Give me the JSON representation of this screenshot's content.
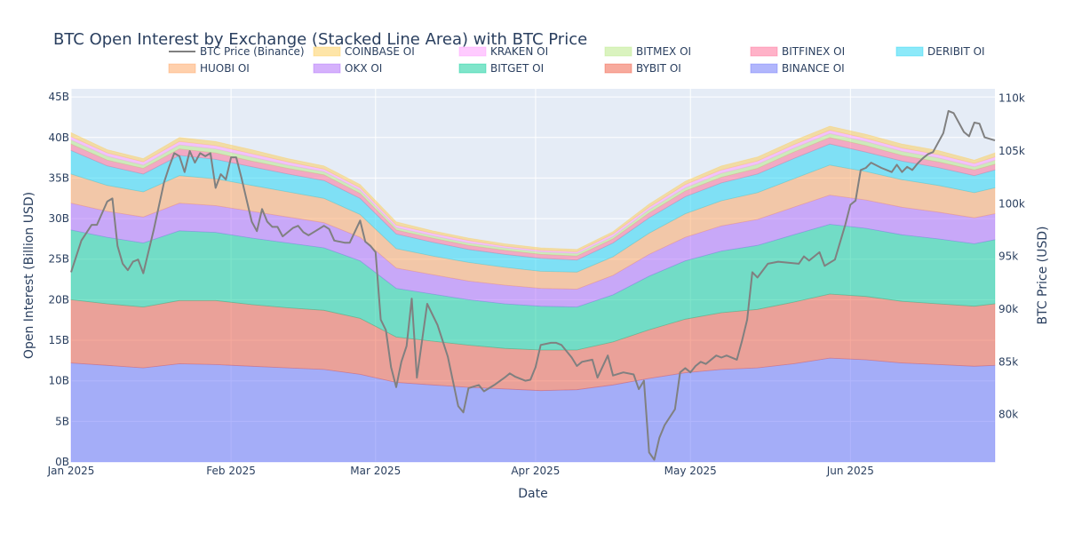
{
  "chart_data": {
    "type": "area",
    "title": "BTC Open Interest by Exchange (Stacked Line Area) with BTC Price",
    "xlabel": "Date",
    "ylabel": "Open Interest (Billion USD)",
    "y2label": "BTC Price (USD)",
    "x_range": [
      "2025-01-01",
      "2025-06-29"
    ],
    "ylim": [
      0,
      46
    ],
    "y2lim": [
      75500,
      110900
    ],
    "grid": true,
    "plot_background": "#e5ecf6",
    "legend_position": "top",
    "x_ticks": [
      {
        "date": "2025-01-01",
        "label": "Jan 2025"
      },
      {
        "date": "2025-02-01",
        "label": "Feb 2025"
      },
      {
        "date": "2025-03-01",
        "label": "Mar 2025"
      },
      {
        "date": "2025-04-01",
        "label": "Apr 2025"
      },
      {
        "date": "2025-05-01",
        "label": "May 2025"
      },
      {
        "date": "2025-06-01",
        "label": "Jun 2025"
      }
    ],
    "y_ticks": [
      {
        "value": 0,
        "label": "0B"
      },
      {
        "value": 5,
        "label": "5B"
      },
      {
        "value": 10,
        "label": "10B"
      },
      {
        "value": 15,
        "label": "15B"
      },
      {
        "value": 20,
        "label": "20B"
      },
      {
        "value": 25,
        "label": "25B"
      },
      {
        "value": 30,
        "label": "30B"
      },
      {
        "value": 35,
        "label": "35B"
      },
      {
        "value": 40,
        "label": "40B"
      },
      {
        "value": 45,
        "label": "45B"
      }
    ],
    "y2_ticks": [
      {
        "value": 80000,
        "label": "80k"
      },
      {
        "value": 85000,
        "label": "85k"
      },
      {
        "value": 90000,
        "label": "90k"
      },
      {
        "value": 95000,
        "label": "95k"
      },
      {
        "value": 100000,
        "label": "100k"
      },
      {
        "value": 105000,
        "label": "105k"
      },
      {
        "value": 110000,
        "label": "110k"
      }
    ],
    "legend": [
      {
        "name": "BTC Price (Binance)",
        "kind": "line",
        "color": "#808080"
      },
      {
        "name": "COINBASE OI",
        "kind": "area",
        "color": "#FECB52"
      },
      {
        "name": "KRAKEN OI",
        "kind": "area",
        "color": "#FF97FF"
      },
      {
        "name": "BITMEX OI",
        "kind": "area",
        "color": "#B6E880"
      },
      {
        "name": "BITFINEX OI",
        "kind": "area",
        "color": "#FF6692"
      },
      {
        "name": "DERIBIT OI",
        "kind": "area",
        "color": "#19D3F3"
      },
      {
        "name": "HUOBI OI",
        "kind": "area",
        "color": "#FFA15A"
      },
      {
        "name": "OKX OI",
        "kind": "area",
        "color": "#AB63FA"
      },
      {
        "name": "BITGET OI",
        "kind": "area",
        "color": "#00CC96"
      },
      {
        "name": "BYBIT OI",
        "kind": "area",
        "color": "#EF553B"
      },
      {
        "name": "BINANCE OI",
        "kind": "area",
        "color": "#636EFA"
      }
    ],
    "stack_order_bottom_to_top": [
      "BINANCE OI",
      "BYBIT OI",
      "BITGET OI",
      "OKX OI",
      "HUOBI OI",
      "DERIBIT OI",
      "BITFINEX OI",
      "BITMEX OI",
      "KRAKEN OI",
      "COINBASE OI"
    ],
    "oi_dates": [
      "2025-01-01",
      "2025-01-08",
      "2025-01-15",
      "2025-01-22",
      "2025-01-29",
      "2025-02-05",
      "2025-02-12",
      "2025-02-19",
      "2025-02-26",
      "2025-03-05",
      "2025-03-12",
      "2025-03-19",
      "2025-03-26",
      "2025-04-02",
      "2025-04-09",
      "2025-04-16",
      "2025-04-23",
      "2025-04-30",
      "2025-05-07",
      "2025-05-14",
      "2025-05-21",
      "2025-05-28",
      "2025-06-04",
      "2025-06-11",
      "2025-06-18",
      "2025-06-25",
      "2025-06-29"
    ],
    "oi_series": [
      {
        "name": "BINANCE OI",
        "values": [
          12.2,
          11.9,
          11.6,
          12.1,
          12.0,
          11.8,
          11.6,
          11.4,
          10.8,
          9.8,
          9.5,
          9.2,
          9.0,
          8.8,
          8.9,
          9.5,
          10.3,
          11.0,
          11.4,
          11.6,
          12.1,
          12.8,
          12.6,
          12.2,
          12.0,
          11.8,
          11.9
        ]
      },
      {
        "name": "BYBIT OI",
        "values": [
          7.8,
          7.6,
          7.5,
          7.8,
          7.9,
          7.6,
          7.4,
          7.3,
          6.9,
          5.6,
          5.4,
          5.2,
          5.0,
          5.0,
          4.9,
          5.3,
          6.0,
          6.6,
          7.0,
          7.2,
          7.6,
          7.9,
          7.8,
          7.6,
          7.5,
          7.4,
          7.6
        ]
      },
      {
        "name": "BITGET OI",
        "values": [
          8.6,
          8.2,
          7.9,
          8.6,
          8.4,
          8.2,
          8.0,
          7.7,
          7.1,
          6.0,
          5.8,
          5.6,
          5.5,
          5.4,
          5.3,
          5.8,
          6.6,
          7.2,
          7.6,
          7.9,
          8.3,
          8.6,
          8.4,
          8.2,
          8.0,
          7.7,
          7.9
        ]
      },
      {
        "name": "OKX OI",
        "values": [
          3.3,
          3.2,
          3.2,
          3.4,
          3.3,
          3.3,
          3.2,
          3.1,
          2.9,
          2.5,
          2.4,
          2.3,
          2.3,
          2.2,
          2.2,
          2.4,
          2.7,
          2.9,
          3.1,
          3.2,
          3.4,
          3.6,
          3.5,
          3.4,
          3.3,
          3.2,
          3.2
        ]
      },
      {
        "name": "HUOBI OI",
        "values": [
          3.6,
          3.2,
          3.1,
          3.4,
          3.3,
          3.2,
          3.1,
          3.0,
          2.8,
          2.4,
          2.3,
          2.3,
          2.2,
          2.1,
          2.1,
          2.3,
          2.6,
          2.9,
          3.1,
          3.3,
          3.5,
          3.7,
          3.5,
          3.4,
          3.3,
          3.1,
          3.2
        ]
      },
      {
        "name": "DERIBIT OI",
        "values": [
          2.9,
          2.4,
          2.2,
          2.5,
          2.4,
          2.3,
          2.2,
          2.2,
          2.0,
          1.8,
          1.7,
          1.6,
          1.6,
          1.6,
          1.5,
          1.7,
          1.9,
          2.1,
          2.2,
          2.3,
          2.5,
          2.6,
          2.4,
          2.3,
          2.2,
          2.1,
          2.2
        ]
      },
      {
        "name": "BITFINEX OI",
        "values": [
          0.8,
          0.7,
          0.7,
          0.8,
          0.8,
          0.7,
          0.7,
          0.7,
          0.6,
          0.5,
          0.5,
          0.5,
          0.5,
          0.5,
          0.5,
          0.5,
          0.6,
          0.7,
          0.7,
          0.7,
          0.8,
          0.8,
          0.8,
          0.7,
          0.7,
          0.7,
          0.7
        ]
      },
      {
        "name": "BITMEX OI",
        "values": [
          0.5,
          0.5,
          0.4,
          0.5,
          0.5,
          0.5,
          0.4,
          0.4,
          0.4,
          0.3,
          0.3,
          0.3,
          0.3,
          0.3,
          0.3,
          0.3,
          0.4,
          0.4,
          0.5,
          0.5,
          0.5,
          0.5,
          0.5,
          0.5,
          0.5,
          0.4,
          0.5
        ]
      },
      {
        "name": "KRAKEN OI",
        "values": [
          0.4,
          0.4,
          0.4,
          0.4,
          0.4,
          0.4,
          0.4,
          0.3,
          0.3,
          0.3,
          0.3,
          0.3,
          0.2,
          0.2,
          0.2,
          0.3,
          0.3,
          0.4,
          0.4,
          0.4,
          0.4,
          0.4,
          0.4,
          0.4,
          0.4,
          0.4,
          0.4
        ]
      },
      {
        "name": "COINBASE OI",
        "values": [
          0.5,
          0.4,
          0.4,
          0.5,
          0.5,
          0.5,
          0.4,
          0.4,
          0.4,
          0.4,
          0.3,
          0.3,
          0.3,
          0.3,
          0.3,
          0.3,
          0.4,
          0.4,
          0.5,
          0.5,
          0.5,
          0.5,
          0.5,
          0.5,
          0.5,
          0.4,
          0.5
        ]
      }
    ],
    "price_series": {
      "name": "BTC Price (Binance)",
      "points": [
        [
          "2025-01-01",
          93500
        ],
        [
          "2025-01-03",
          96500
        ],
        [
          "2025-01-05",
          98000
        ],
        [
          "2025-01-06",
          98000
        ],
        [
          "2025-01-08",
          100200
        ],
        [
          "2025-01-09",
          100500
        ],
        [
          "2025-01-10",
          96000
        ],
        [
          "2025-01-11",
          94300
        ],
        [
          "2025-01-12",
          93700
        ],
        [
          "2025-01-13",
          94500
        ],
        [
          "2025-01-14",
          94700
        ],
        [
          "2025-01-15",
          93400
        ],
        [
          "2025-01-17",
          97500
        ],
        [
          "2025-01-19",
          102000
        ],
        [
          "2025-01-20",
          103500
        ],
        [
          "2025-01-21",
          104800
        ],
        [
          "2025-01-22",
          104500
        ],
        [
          "2025-01-23",
          103000
        ],
        [
          "2025-01-24",
          105000
        ],
        [
          "2025-01-25",
          103900
        ],
        [
          "2025-01-26",
          104800
        ],
        [
          "2025-01-27",
          104500
        ],
        [
          "2025-01-28",
          104800
        ],
        [
          "2025-01-29",
          101500
        ],
        [
          "2025-01-30",
          102800
        ],
        [
          "2025-01-31",
          102300
        ],
        [
          "2025-02-01",
          104400
        ],
        [
          "2025-02-02",
          104400
        ],
        [
          "2025-02-03",
          102500
        ],
        [
          "2025-02-05",
          98300
        ],
        [
          "2025-02-06",
          97400
        ],
        [
          "2025-02-07",
          99500
        ],
        [
          "2025-02-08",
          98300
        ],
        [
          "2025-02-09",
          97800
        ],
        [
          "2025-02-10",
          97800
        ],
        [
          "2025-02-11",
          96900
        ],
        [
          "2025-02-13",
          97700
        ],
        [
          "2025-02-14",
          97900
        ],
        [
          "2025-02-15",
          97300
        ],
        [
          "2025-02-16",
          97000
        ],
        [
          "2025-02-18",
          97600
        ],
        [
          "2025-02-19",
          97900
        ],
        [
          "2025-02-20",
          97600
        ],
        [
          "2025-02-21",
          96500
        ],
        [
          "2025-02-23",
          96300
        ],
        [
          "2025-02-24",
          96300
        ],
        [
          "2025-02-26",
          98400
        ],
        [
          "2025-02-27",
          96400
        ],
        [
          "2025-02-28",
          96000
        ],
        [
          "2025-03-01",
          95400
        ],
        [
          "2025-03-02",
          89000
        ],
        [
          "2025-03-03",
          88000
        ],
        [
          "2025-03-04",
          84500
        ],
        [
          "2025-03-05",
          82600
        ],
        [
          "2025-03-06",
          85000
        ],
        [
          "2025-03-07",
          86500
        ],
        [
          "2025-03-08",
          91000
        ],
        [
          "2025-03-09",
          83500
        ],
        [
          "2025-03-11",
          90500
        ],
        [
          "2025-03-13",
          88500
        ],
        [
          "2025-03-15",
          85500
        ],
        [
          "2025-03-17",
          80800
        ],
        [
          "2025-03-18",
          80200
        ],
        [
          "2025-03-19",
          82500
        ],
        [
          "2025-03-21",
          82800
        ],
        [
          "2025-03-22",
          82200
        ],
        [
          "2025-03-24",
          82800
        ],
        [
          "2025-03-26",
          83500
        ],
        [
          "2025-03-27",
          83900
        ],
        [
          "2025-03-28",
          83600
        ],
        [
          "2025-03-30",
          83200
        ],
        [
          "2025-03-31",
          83300
        ],
        [
          "2025-04-01",
          84500
        ],
        [
          "2025-04-02",
          86600
        ],
        [
          "2025-04-04",
          86800
        ],
        [
          "2025-04-05",
          86800
        ],
        [
          "2025-04-06",
          86600
        ],
        [
          "2025-04-08",
          85400
        ],
        [
          "2025-04-09",
          84600
        ],
        [
          "2025-04-10",
          85000
        ],
        [
          "2025-04-12",
          85200
        ],
        [
          "2025-04-13",
          83500
        ],
        [
          "2025-04-15",
          85600
        ],
        [
          "2025-04-16",
          83700
        ],
        [
          "2025-04-18",
          84000
        ],
        [
          "2025-04-20",
          83800
        ],
        [
          "2025-04-21",
          82400
        ],
        [
          "2025-04-22",
          83200
        ],
        [
          "2025-04-23",
          76400
        ],
        [
          "2025-04-24",
          75700
        ],
        [
          "2025-04-25",
          77800
        ],
        [
          "2025-04-26",
          79000
        ],
        [
          "2025-04-28",
          80500
        ],
        [
          "2025-04-29",
          84000
        ],
        [
          "2025-04-30",
          84400
        ],
        [
          "2025-05-01",
          84000
        ],
        [
          "2025-05-02",
          84600
        ],
        [
          "2025-05-03",
          85000
        ],
        [
          "2025-05-04",
          84800
        ],
        [
          "2025-05-06",
          85600
        ],
        [
          "2025-05-07",
          85400
        ],
        [
          "2025-05-08",
          85600
        ],
        [
          "2025-05-10",
          85200
        ],
        [
          "2025-05-11",
          87000
        ],
        [
          "2025-05-12",
          89000
        ],
        [
          "2025-05-13",
          93500
        ],
        [
          "2025-05-14",
          93000
        ],
        [
          "2025-05-16",
          94300
        ],
        [
          "2025-05-18",
          94500
        ],
        [
          "2025-05-20",
          94400
        ],
        [
          "2025-05-22",
          94300
        ],
        [
          "2025-05-23",
          95000
        ],
        [
          "2025-05-24",
          94600
        ],
        [
          "2025-05-26",
          95400
        ],
        [
          "2025-05-27",
          94100
        ],
        [
          "2025-05-29",
          94700
        ],
        [
          "2025-05-31",
          98000
        ],
        [
          "2025-06-01",
          99900
        ],
        [
          "2025-06-02",
          100300
        ],
        [
          "2025-06-03",
          103200
        ],
        [
          "2025-06-04",
          103400
        ],
        [
          "2025-06-05",
          103900
        ],
        [
          "2025-06-07",
          103400
        ],
        [
          "2025-06-09",
          103000
        ],
        [
          "2025-06-10",
          103700
        ],
        [
          "2025-06-11",
          103000
        ],
        [
          "2025-06-12",
          103500
        ],
        [
          "2025-06-13",
          103200
        ],
        [
          "2025-06-14",
          103800
        ],
        [
          "2025-06-15",
          104300
        ],
        [
          "2025-06-16",
          104700
        ],
        [
          "2025-06-17",
          104900
        ],
        [
          "2025-06-19",
          106700
        ],
        [
          "2025-06-20",
          108800
        ],
        [
          "2025-06-21",
          108600
        ],
        [
          "2025-06-23",
          106800
        ],
        [
          "2025-06-24",
          106400
        ],
        [
          "2025-06-25",
          107700
        ],
        [
          "2025-06-26",
          107600
        ],
        [
          "2025-06-27",
          106300
        ],
        [
          "2025-06-29",
          106000
        ]
      ]
    }
  }
}
